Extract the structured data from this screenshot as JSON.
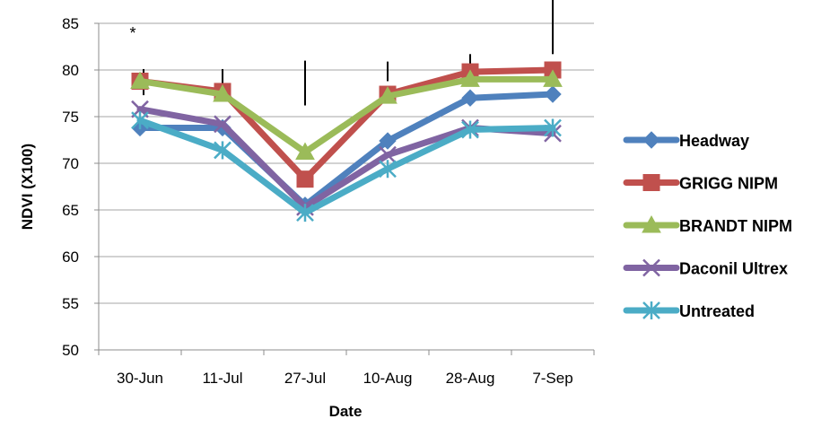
{
  "chart_data": {
    "type": "line",
    "title": "",
    "xlabel": "Date",
    "ylabel": "NDVI (X100)",
    "categories": [
      "30-Jun",
      "11-Jul",
      "27-Jul",
      "10-Aug",
      "28-Aug",
      "7-Sep"
    ],
    "ylim": [
      50,
      85
    ],
    "yticks": [
      50,
      55,
      60,
      65,
      70,
      75,
      80,
      85
    ],
    "grid": "horizontal",
    "legend": "right",
    "series": [
      {
        "name": "Headway",
        "marker": "diamond",
        "color": "#4f81bd",
        "values": [
          73.8,
          73.8,
          65.5,
          72.4,
          77.0,
          77.4
        ]
      },
      {
        "name": "GRIGG NIPM",
        "marker": "square",
        "color": "#c0504d",
        "values": [
          78.8,
          77.7,
          68.3,
          77.4,
          79.8,
          80.0
        ]
      },
      {
        "name": "BRANDT NIPM",
        "marker": "triangle",
        "color": "#9bbb59",
        "values": [
          78.8,
          77.4,
          71.2,
          77.2,
          79.0,
          79.0
        ]
      },
      {
        "name": "Daconil Ultrex",
        "marker": "x",
        "color": "#8064a2",
        "values": [
          75.8,
          74.2,
          65.3,
          70.9,
          73.8,
          73.2
        ]
      },
      {
        "name": "Untreated",
        "marker": "star",
        "color": "#4bacc6",
        "values": [
          74.6,
          71.4,
          64.7,
          69.4,
          73.6,
          73.8
        ]
      }
    ],
    "error_bars": [
      {
        "category": "30-Jun",
        "low": 77.3,
        "high": 80.1
      },
      {
        "category": "11-Jul",
        "low": 77.9,
        "high": 80.1
      },
      {
        "category": "27-Jul",
        "low": 76.2,
        "high": 81.0
      },
      {
        "category": "10-Aug",
        "low": 78.8,
        "high": 80.9
      },
      {
        "category": "28-Aug",
        "low": 79.7,
        "high": 81.7
      },
      {
        "category": "7-Sep",
        "low": 81.7,
        "high": 88.0
      }
    ],
    "annotations": [
      {
        "category": "30-Jun",
        "text": "*"
      }
    ]
  }
}
